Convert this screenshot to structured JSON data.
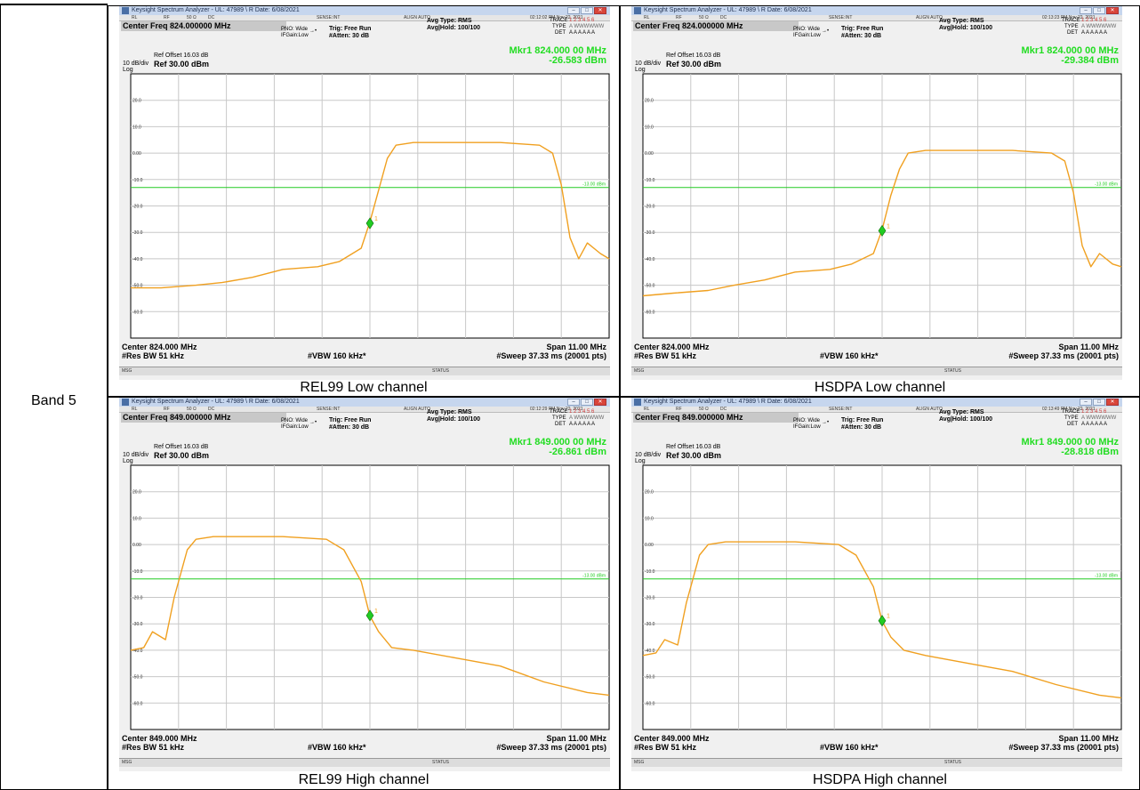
{
  "band_label": "Band 5",
  "colors": {
    "trace": "#f0a020",
    "limit_line": "#22cc22",
    "marker": "#22cc22",
    "grid": "#c8c8c8"
  },
  "panels": [
    {
      "caption": "REL99 Low channel",
      "window_title": "Keysight Spectrum Analyzer - UL: 47989 \\ R Date: 6/08/2021",
      "timestamp": "02:12:02 PM Nov 22, 2021",
      "center_freq_title": "Center Freq 824.000000 MHz",
      "settings": {
        "rl": "RL",
        "rf": "RF",
        "ohm": "50 Ω",
        "dc": "DC",
        "sense": "SENSE:INT",
        "align": "ALIGN AUTO"
      },
      "pno": "PNO: Wide",
      "ifgain": "IFGain:Low",
      "trig": "Trig: Free Run",
      "atten": "#Atten: 30 dB",
      "avg_type": "Avg Type: RMS",
      "avg_hold": "Avg|Hold: 100/100",
      "trace_label": "TRACE",
      "trace_nums": "1 2 3 4 5 6",
      "type_label": "TYPE",
      "type_val": "A WWWWWW",
      "det_label": "DET",
      "det_val": "A A A A A A",
      "ref_offset": "Ref Offset 16.03 dB",
      "scale": "10 dB/div",
      "ref_level": "Ref 30.00 dBm",
      "log": "Log",
      "marker_freq": "Mkr1 824.000 00 MHz",
      "marker_level": "-26.583 dBm",
      "limit_label": "-13.00 dBm",
      "center": "Center 824.000 MHz",
      "span": "Span 11.00 MHz",
      "res_bw": "#Res BW 51 kHz",
      "vbw": "#VBW 160 kHz*",
      "sweep": "#Sweep  37.33 ms (20001 pts)",
      "msg": "MSG",
      "status": "STATUS",
      "chart_data": {
        "type": "line",
        "ylabel": "dBm",
        "ylim": [
          -70,
          30
        ],
        "xlim": [
          818.5,
          829.5
        ],
        "y_ticks": [
          "20.0",
          "10.0",
          "0.00",
          "-10.0",
          "-20.0",
          "-30.0",
          "-40.0",
          "-50.0",
          "-60.0"
        ],
        "limit_line": -13,
        "marker": {
          "x": 824.0,
          "y": -26.583,
          "label": "1"
        },
        "series": [
          {
            "x": [
              818.5,
              819.2,
              820.0,
              820.6,
              821.3,
              822.0,
              822.8,
              823.3,
              823.8,
              824.0,
              824.2,
              824.4,
              824.6,
              825.0,
              826.0,
              827.0,
              827.9,
              828.2,
              828.4,
              828.6,
              828.8,
              829.0,
              829.3,
              829.5
            ],
            "values": [
              -51,
              -51,
              -50,
              -49,
              -47,
              -44,
              -43,
              -41,
              -36,
              -26,
              -14,
              -2,
              3,
              4,
              4,
              4,
              3,
              0,
              -12,
              -32,
              -40,
              -34,
              -38,
              -40
            ]
          }
        ]
      }
    },
    {
      "caption": "HSDPA Low channel",
      "window_title": "Keysight Spectrum Analyzer - UL: 47989 \\ R Date: 6/08/2021",
      "timestamp": "02:13:23 PM Nov 22, 2021",
      "center_freq_title": "Center Freq 824.000000 MHz",
      "settings": {
        "rl": "RL",
        "rf": "RF",
        "ohm": "50 Ω",
        "dc": "DC",
        "sense": "SENSE:INT",
        "align": "ALIGN AUTO"
      },
      "pno": "PNO: Wide",
      "ifgain": "IFGain:Low",
      "trig": "Trig: Free Run",
      "atten": "#Atten: 30 dB",
      "avg_type": "Avg Type: RMS",
      "avg_hold": "Avg|Hold: 100/100",
      "trace_label": "TRACE",
      "trace_nums": "1 2 3 4 5 6",
      "type_label": "TYPE",
      "type_val": "A WWWWWW",
      "det_label": "DET",
      "det_val": "A A A A A A",
      "ref_offset": "Ref Offset 16.03 dB",
      "scale": "10 dB/div",
      "ref_level": "Ref 30.00 dBm",
      "log": "Log",
      "marker_freq": "Mkr1 824.000 00 MHz",
      "marker_level": "-29.384 dBm",
      "limit_label": "-13.00 dBm",
      "center": "Center 824.000 MHz",
      "span": "Span 11.00 MHz",
      "res_bw": "#Res BW 51 kHz",
      "vbw": "#VBW 160 kHz*",
      "sweep": "#Sweep  37.33 ms (20001 pts)",
      "msg": "MSG",
      "status": "STATUS",
      "chart_data": {
        "type": "line",
        "ylabel": "dBm",
        "ylim": [
          -70,
          30
        ],
        "xlim": [
          818.5,
          829.5
        ],
        "y_ticks": [
          "20.0",
          "10.0",
          "0.00",
          "-10.0",
          "-20.0",
          "-30.0",
          "-40.0",
          "-50.0",
          "-60.0"
        ],
        "limit_line": -13,
        "marker": {
          "x": 824.0,
          "y": -29.384,
          "label": "1"
        },
        "series": [
          {
            "x": [
              818.5,
              819.2,
              820.0,
              820.6,
              821.3,
              822.0,
              822.8,
              823.3,
              823.8,
              824.0,
              824.2,
              824.4,
              824.6,
              825.0,
              826.0,
              827.0,
              827.9,
              828.2,
              828.4,
              828.6,
              828.8,
              829.0,
              829.3,
              829.5
            ],
            "values": [
              -54,
              -53,
              -52,
              -50,
              -48,
              -45,
              -44,
              -42,
              -38,
              -29,
              -16,
              -6,
              0,
              1,
              1,
              1,
              0,
              -3,
              -15,
              -35,
              -43,
              -38,
              -42,
              -43
            ]
          }
        ]
      }
    },
    {
      "caption": "REL99 High channel",
      "window_title": "Keysight Spectrum Analyzer - UL: 47989 \\ R Date: 6/08/2021",
      "timestamp": "02:12:29 PM Nov 22, 2021",
      "center_freq_title": "Center Freq 849.000000 MHz",
      "settings": {
        "rl": "RL",
        "rf": "RF",
        "ohm": "50 Ω",
        "dc": "DC",
        "sense": "SENSE:INT",
        "align": "ALIGN AUTO"
      },
      "pno": "PNO: Wide",
      "ifgain": "IFGain:Low",
      "trig": "Trig: Free Run",
      "atten": "#Atten: 30 dB",
      "avg_type": "Avg Type: RMS",
      "avg_hold": "Avg|Hold: 100/100",
      "trace_label": "TRACE",
      "trace_nums": "1 2 3 4 5 6",
      "type_label": "TYPE",
      "type_val": "A WWWWWW",
      "det_label": "DET",
      "det_val": "A A A A A A",
      "ref_offset": "Ref Offset 16.03 dB",
      "scale": "10 dB/div",
      "ref_level": "Ref 30.00 dBm",
      "log": "Log",
      "marker_freq": "Mkr1 849.000 00 MHz",
      "marker_level": "-26.861 dBm",
      "limit_label": "-13.00 dBm",
      "center": "Center 849.000 MHz",
      "span": "Span 11.00 MHz",
      "res_bw": "#Res BW 51 kHz",
      "vbw": "#VBW 160 kHz*",
      "sweep": "#Sweep  37.33 ms (20001 pts)",
      "msg": "MSG",
      "status": "STATUS",
      "chart_data": {
        "type": "line",
        "ylabel": "dBm",
        "ylim": [
          -70,
          30
        ],
        "xlim": [
          843.5,
          854.5
        ],
        "y_ticks": [
          "20.0",
          "10.0",
          "0.00",
          "-10.0",
          "-20.0",
          "-30.0",
          "-40.0",
          "-50.0",
          "-60.0"
        ],
        "limit_line": -13,
        "marker": {
          "x": 849.0,
          "y": -26.861,
          "label": "1"
        },
        "series": [
          {
            "x": [
              843.5,
              843.8,
              844.0,
              844.3,
              844.5,
              844.8,
              845.0,
              845.4,
              846.0,
              847.0,
              848.0,
              848.4,
              848.8,
              849.0,
              849.2,
              849.5,
              850.0,
              851.0,
              852.0,
              853.0,
              854.0,
              854.5
            ],
            "values": [
              -40,
              -39,
              -33,
              -36,
              -20,
              -2,
              2,
              3,
              3,
              3,
              2,
              -2,
              -14,
              -27,
              -33,
              -39,
              -40,
              -43,
              -46,
              -52,
              -56,
              -57
            ]
          }
        ]
      }
    },
    {
      "caption": "HSDPA High channel",
      "window_title": "Keysight Spectrum Analyzer - UL: 47989 \\ R Date: 6/08/2021",
      "timestamp": "02:13:49 PM Nov 22, 2021",
      "center_freq_title": "Center Freq 849.000000 MHz",
      "settings": {
        "rl": "RL",
        "rf": "RF",
        "ohm": "50 Ω",
        "dc": "DC",
        "sense": "SENSE:INT",
        "align": "ALIGN AUTO"
      },
      "pno": "PNO: Wide",
      "ifgain": "IFGain:Low",
      "trig": "Trig: Free Run",
      "atten": "#Atten: 30 dB",
      "avg_type": "Avg Type: RMS",
      "avg_hold": "Avg|Hold: 100/100",
      "trace_label": "TRACE",
      "trace_nums": "1 2 3 4 5 6",
      "type_label": "TYPE",
      "type_val": "A WWWWWW",
      "det_label": "DET",
      "det_val": "A A A A A A",
      "ref_offset": "Ref Offset 16.03 dB",
      "scale": "10 dB/div",
      "ref_level": "Ref 30.00 dBm",
      "log": "Log",
      "marker_freq": "Mkr1 849.000 00 MHz",
      "marker_level": "-28.818 dBm",
      "limit_label": "-13.00 dBm",
      "center": "Center 849.000 MHz",
      "span": "Span 11.00 MHz",
      "res_bw": "#Res BW 51 kHz",
      "vbw": "#VBW 160 kHz*",
      "sweep": "#Sweep  37.33 ms (20001 pts)",
      "msg": "MSG",
      "status": "STATUS",
      "chart_data": {
        "type": "line",
        "ylabel": "dBm",
        "ylim": [
          -70,
          30
        ],
        "xlim": [
          843.5,
          854.5
        ],
        "y_ticks": [
          "20.0",
          "10.0",
          "0.00",
          "-10.0",
          "-20.0",
          "-30.0",
          "-40.0",
          "-50.0",
          "-60.0"
        ],
        "limit_line": -13,
        "marker": {
          "x": 849.0,
          "y": -28.818,
          "label": "1"
        },
        "series": [
          {
            "x": [
              843.5,
              843.8,
              844.0,
              844.3,
              844.5,
              844.8,
              845.0,
              845.4,
              846.0,
              847.0,
              848.0,
              848.4,
              848.8,
              849.0,
              849.2,
              849.5,
              850.0,
              851.0,
              852.0,
              853.0,
              854.0,
              854.5
            ],
            "values": [
              -42,
              -41,
              -36,
              -38,
              -22,
              -4,
              0,
              1,
              1,
              1,
              0,
              -4,
              -16,
              -29,
              -35,
              -40,
              -42,
              -45,
              -48,
              -53,
              -57,
              -58
            ]
          }
        ]
      }
    }
  ]
}
